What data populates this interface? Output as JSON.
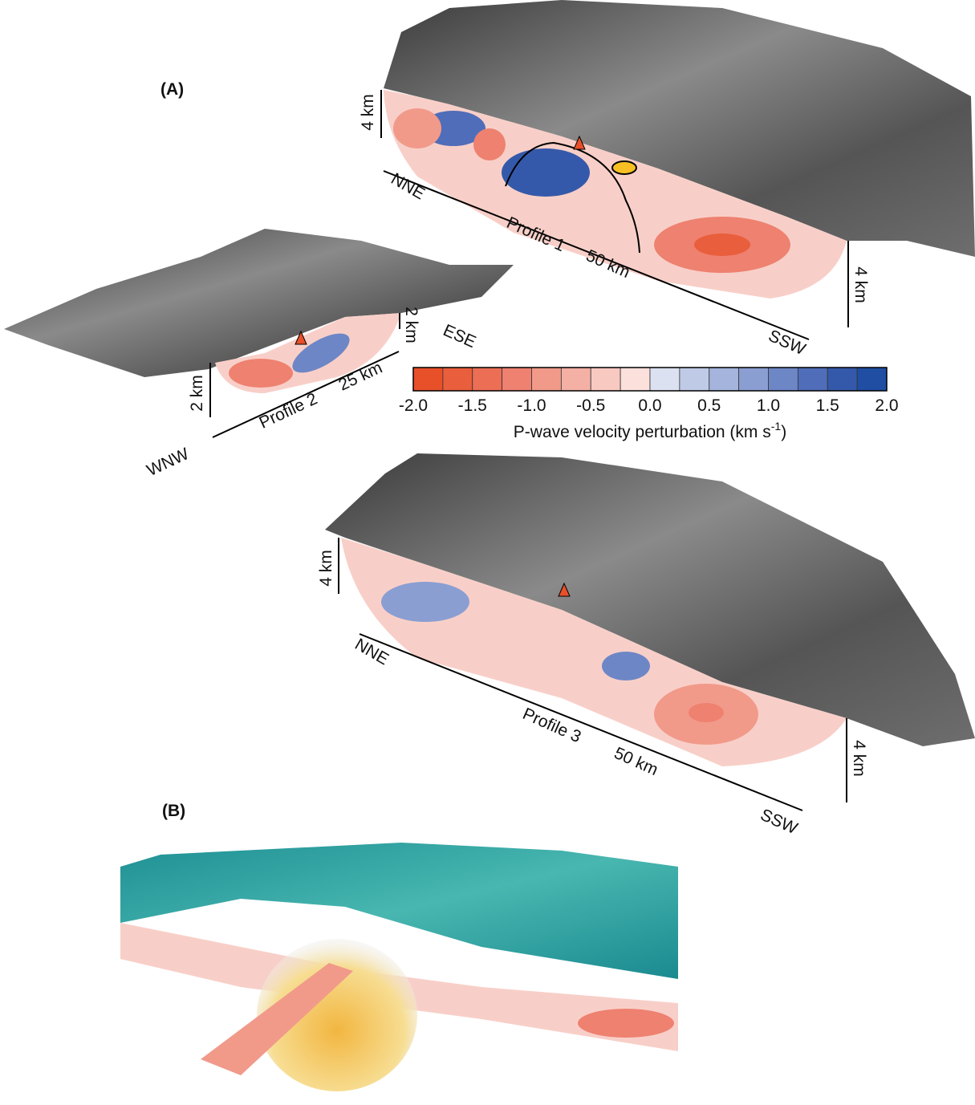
{
  "panel_a": {
    "label": "(A)",
    "profile_1": {
      "name": "Profile 1",
      "start": "NNE",
      "end": "SSW",
      "distance": "50 km",
      "scale_left": "4 km",
      "scale_right": "4 km"
    },
    "profile_2": {
      "name": "Profile 2",
      "start": "WNW",
      "end": "ESE",
      "distance": "25 km",
      "scale_left": "2 km",
      "scale_right": "2 km"
    },
    "profile_3": {
      "name": "Profile 3",
      "start": "NNE",
      "end": "SSW",
      "distance": "50 km",
      "scale_left": "4 km",
      "scale_right": "4 km"
    }
  },
  "colorbar": {
    "colors": [
      "#e8502a",
      "#e95e3c",
      "#eb6e55",
      "#ee8170",
      "#f19a8a",
      "#f4b0a4",
      "#f8c9c1",
      "#fbe0dc",
      "#dbe1f0",
      "#bfcae6",
      "#a4b4dc",
      "#8a9ed2",
      "#6d86c6",
      "#4f6db9",
      "#3559aa",
      "#1f4ea3"
    ],
    "tick_labels": [
      "-2.0",
      "-1.5",
      "-1.0",
      "-0.5",
      "0.0",
      "0.5",
      "1.0",
      "1.5",
      "2.0"
    ],
    "label": {
      "main": "P-wave velocity perturbation (km s",
      "sup": "-1",
      "end": ")"
    }
  },
  "panel_b": {
    "label": "(B)"
  }
}
